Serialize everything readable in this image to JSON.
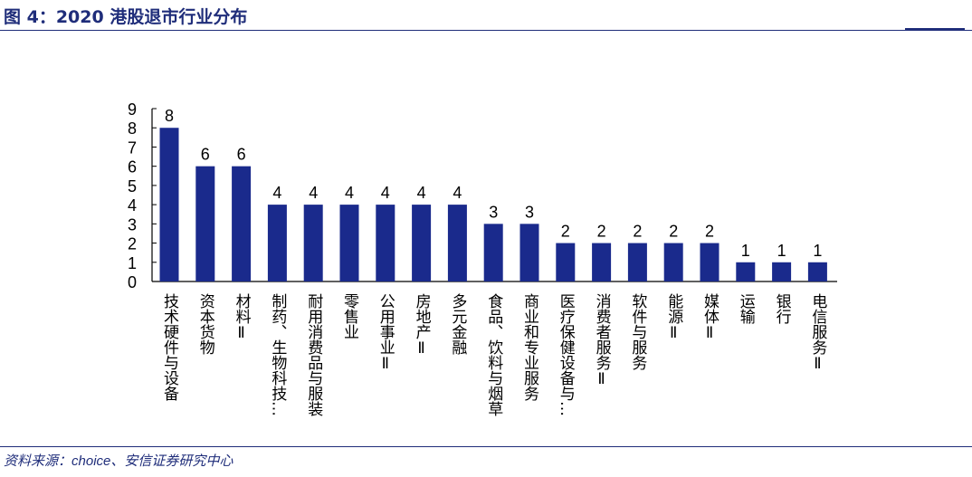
{
  "header": {
    "title": "图 4：2020 港股退市行业分布"
  },
  "footer": {
    "source_prefix": "资料来源：",
    "source_brand": "choice",
    "source_suffix": "、安信证券研究中心"
  },
  "chart_data": {
    "type": "bar",
    "categories": [
      "技术硬件与设备",
      "资本货物",
      "材料Ⅱ",
      "制药、生物科技…",
      "耐用消费品与服装",
      "零售业",
      "公用事业Ⅱ",
      "房地产Ⅱ",
      "多元金融",
      "食品、饮料与烟草",
      "商业和专业服务",
      "医疗保健设备与…",
      "消费者服务Ⅱ",
      "软件与服务",
      "能源Ⅱ",
      "媒体Ⅱ",
      "运输",
      "银行",
      "电信服务Ⅱ"
    ],
    "values": [
      8,
      6,
      6,
      4,
      4,
      4,
      4,
      4,
      4,
      3,
      3,
      2,
      2,
      2,
      2,
      2,
      1,
      1,
      1
    ],
    "yticks": [
      "0",
      "1",
      "2",
      "3",
      "4",
      "5",
      "6",
      "7",
      "8",
      "9"
    ],
    "ylim": [
      0,
      9
    ],
    "bar_color": "#1a2a8c",
    "axis_color": "#000000",
    "grid": false,
    "legend": "none"
  }
}
